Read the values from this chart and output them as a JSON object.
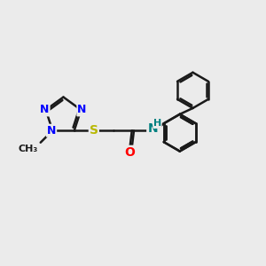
{
  "background_color": "#ebebeb",
  "bond_color": "#1a1a1a",
  "N_color": "#0000ff",
  "O_color": "#ff0000",
  "S_color": "#b8b800",
  "NH_color": "#008080",
  "figsize": [
    3.0,
    3.0
  ],
  "dpi": 100,
  "xlim": [
    0,
    12
  ],
  "ylim": [
    0,
    12
  ]
}
